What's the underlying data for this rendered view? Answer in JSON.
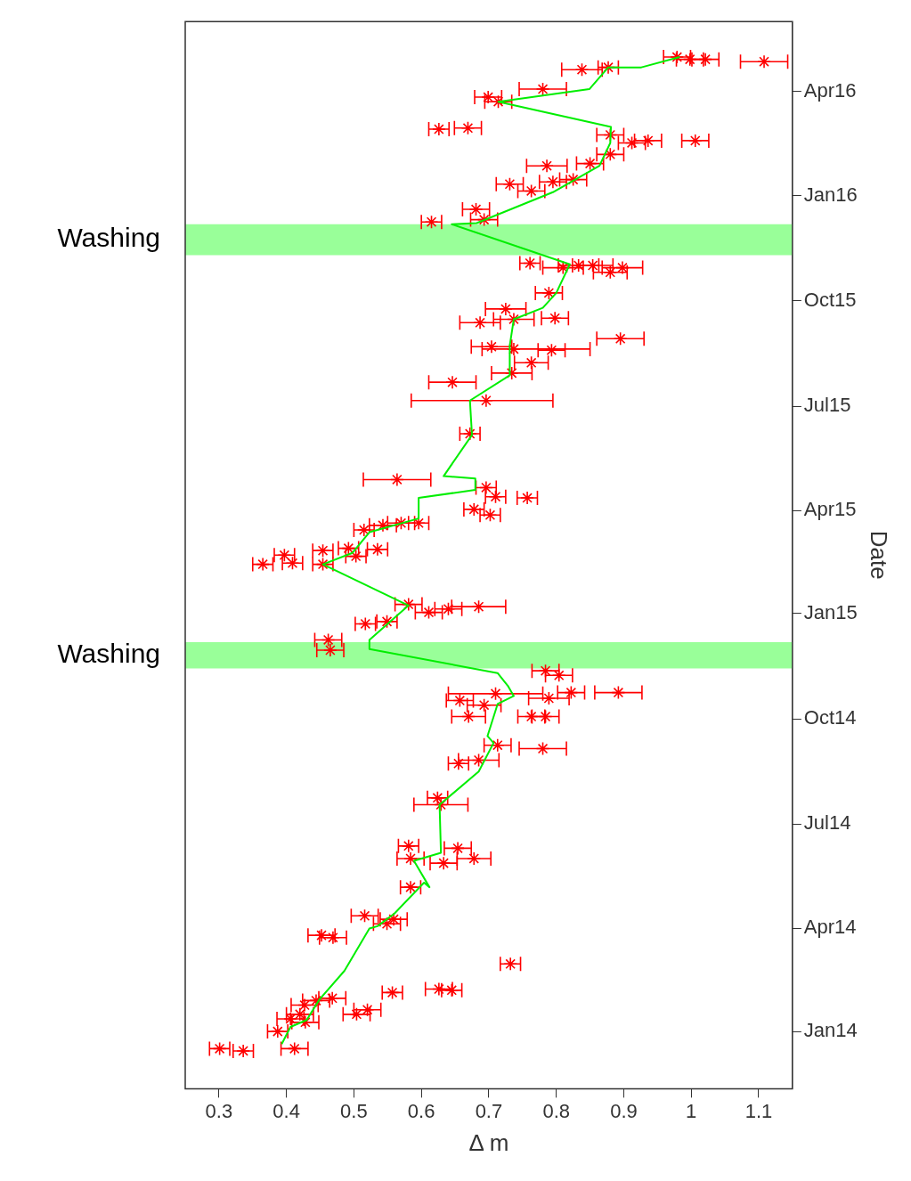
{
  "chart_data": {
    "type": "scatter",
    "orientation": "horizontal",
    "xlabel": "Δ m",
    "ylabel": "Date",
    "xlim": [
      0.25,
      1.15
    ],
    "ylim": [
      "2013-11-12",
      "2016-06-01"
    ],
    "xticks": [
      0.3,
      0.4,
      0.5,
      0.6,
      0.7,
      0.8,
      0.9,
      1,
      1.1
    ],
    "yticks": [
      {
        "value": "2014-01-01",
        "label": "Jan14"
      },
      {
        "value": "2014-04-01",
        "label": "Apr14"
      },
      {
        "value": "2014-07-01",
        "label": "Jul14"
      },
      {
        "value": "2014-10-01",
        "label": "Oct14"
      },
      {
        "value": "2015-01-01",
        "label": "Jan15"
      },
      {
        "value": "2015-04-01",
        "label": "Apr15"
      },
      {
        "value": "2015-07-01",
        "label": "Jul15"
      },
      {
        "value": "2015-10-01",
        "label": "Oct15"
      },
      {
        "value": "2016-01-01",
        "label": "Jan16"
      },
      {
        "value": "2016-04-01",
        "label": "Apr16"
      }
    ],
    "grid": false,
    "legend": false,
    "marker": "cross",
    "bands": [
      {
        "axis": "y",
        "from": "2014-11-14",
        "to": "2014-12-07",
        "label": "Washing",
        "color": "#99ff99"
      },
      {
        "axis": "y",
        "from": "2015-11-10",
        "to": "2015-12-07",
        "label": "Washing",
        "color": "#99ff99"
      }
    ],
    "series": [
      {
        "color": "#ff0000",
        "x": [
          "2013-12-17",
          "2013-12-15",
          "2013-12-17",
          "2014-01-01",
          "2014-01-12",
          "2014-01-16",
          "2014-01-24",
          "2014-01-28",
          "2014-01-30",
          "2014-01-09",
          "2014-01-16",
          "2014-01-20",
          "2014-02-04",
          "2014-02-07",
          "2014-02-06",
          "2014-03-01",
          "2014-03-26",
          "2014-03-24",
          "2014-04-12",
          "2014-04-05",
          "2014-04-09",
          "2014-05-07",
          "2014-05-28",
          "2014-06-10",
          "2014-06-01",
          "2014-06-01",
          "2014-06-12",
          "2014-07-24",
          "2014-07-18",
          "2014-08-23",
          "2014-08-26",
          "2014-09-08",
          "2014-09-05",
          "2014-10-03",
          "2014-10-13",
          "2014-10-03",
          "2014-10-03",
          "2014-10-19",
          "2014-10-24",
          "2014-10-24",
          "2014-10-17",
          "2014-10-23",
          "2014-11-12",
          "2014-11-08",
          "2014-11-30",
          "2014-12-09",
          "2014-12-23",
          "2014-12-25",
          "2015-01-09",
          "2015-01-02",
          "2015-01-05",
          "2015-01-07",
          "2015-02-13",
          "2015-02-21",
          "2015-02-14",
          "2015-02-25",
          "2015-02-13",
          "2015-02-27",
          "2015-02-20",
          "2015-02-26",
          "2015-03-15",
          "2015-03-19",
          "2015-03-21",
          "2015-03-21",
          "2015-04-02",
          "2015-03-28",
          "2015-04-12",
          "2015-04-21",
          "2015-04-13",
          "2015-04-28",
          "2015-06-07",
          "2015-07-06",
          "2015-07-22",
          "2015-07-30",
          "2015-08-08",
          "2015-08-22",
          "2015-08-20",
          "2015-08-19",
          "2015-08-29",
          "2015-09-12",
          "2015-09-15",
          "2015-09-16",
          "2015-09-24",
          "2015-10-08",
          "2015-11-03",
          "2015-10-30",
          "2015-11-01",
          "2015-11-01",
          "2015-10-26",
          "2015-10-30",
          "2015-12-09",
          "2015-12-11",
          "2015-12-20",
          "2016-01-11",
          "2016-01-05",
          "2016-01-13",
          "2016-01-15",
          "2016-01-27",
          "2016-01-29",
          "2016-02-06",
          "2016-02-16",
          "2016-02-18",
          "2016-02-18",
          "2016-02-23",
          "2016-02-28",
          "2016-02-29",
          "2016-03-27",
          "2016-03-23",
          "2016-04-03",
          "2016-04-20",
          "2016-04-22",
          "2016-05-01",
          "2016-04-29",
          "2016-04-29",
          "2016-04-27"
        ],
        "values": [
          0.301,
          0.336,
          0.412,
          0.387,
          0.406,
          0.42,
          0.427,
          0.444,
          0.468,
          0.428,
          0.504,
          0.52,
          0.557,
          0.626,
          0.645,
          0.732,
          0.452,
          0.469,
          0.516,
          0.549,
          0.559,
          0.584,
          0.633,
          0.654,
          0.678,
          0.584,
          0.581,
          0.624,
          0.629,
          0.655,
          0.685,
          0.713,
          0.78,
          0.67,
          0.693,
          0.763,
          0.784,
          0.789,
          0.822,
          0.892,
          0.657,
          0.71,
          0.784,
          0.804,
          0.465,
          0.462,
          0.517,
          0.549,
          0.581,
          0.611,
          0.64,
          0.685,
          0.365,
          0.397,
          0.409,
          0.454,
          0.454,
          0.492,
          0.503,
          0.535,
          0.515,
          0.543,
          0.57,
          0.596,
          0.678,
          0.702,
          0.757,
          0.696,
          0.71,
          0.564,
          0.672,
          0.696,
          0.646,
          0.734,
          0.763,
          0.704,
          0.737,
          0.793,
          0.895,
          0.687,
          0.737,
          0.798,
          0.725,
          0.789,
          0.761,
          0.81,
          0.833,
          0.854,
          0.88,
          0.898,
          0.615,
          0.693,
          0.681,
          0.731,
          0.763,
          0.795,
          0.825,
          0.786,
          0.85,
          0.88,
          0.912,
          0.936,
          1.006,
          0.88,
          0.626,
          0.669,
          0.699,
          0.714,
          0.78,
          0.838,
          0.877,
          0.979,
          0.998,
          1.021,
          1.108
        ],
        "errors": [
          0.015,
          0.015,
          0.02,
          0.015,
          0.02,
          0.02,
          0.02,
          0.02,
          0.02,
          0.02,
          0.02,
          0.02,
          0.015,
          0.02,
          0.015,
          0.015,
          0.02,
          0.02,
          0.02,
          0.02,
          0.02,
          0.015,
          0.02,
          0.02,
          0.025,
          0.02,
          0.015,
          0.015,
          0.04,
          0.015,
          0.03,
          0.02,
          0.035,
          0.025,
          0.025,
          0.02,
          0.02,
          0.03,
          0.02,
          0.035,
          0.02,
          0.07,
          0.02,
          0.02,
          0.02,
          0.02,
          0.015,
          0.015,
          0.02,
          0.02,
          0.02,
          0.04,
          0.015,
          0.015,
          0.015,
          0.015,
          0.015,
          0.015,
          0.015,
          0.015,
          0.015,
          0.02,
          0.02,
          0.015,
          0.015,
          0.015,
          0.015,
          0.015,
          0.015,
          0.05,
          0.015,
          [
            0.585,
            0.795
          ],
          0.035,
          0.03,
          0.025,
          0.03,
          [
            0.69,
            0.85
          ],
          0.02,
          0.035,
          0.03,
          0.03,
          0.02,
          0.03,
          0.02,
          0.015,
          0.03,
          0.03,
          0.03,
          0.025,
          0.03,
          0.015,
          0.02,
          0.02,
          0.02,
          0.02,
          0.02,
          0.02,
          0.03,
          0.02,
          0.02,
          0.02,
          0.02,
          0.02,
          0.02,
          0.015,
          0.02,
          0.02,
          0.02,
          0.035,
          0.03,
          0.015,
          0.02,
          0.02,
          0.02,
          0.035
        ]
      },
      {
        "type": "line",
        "color": "#00ee00",
        "marker": "none",
        "x": [
          "2013-12-21",
          "2014-01-05",
          "2014-01-11",
          "2014-01-29",
          "2014-02-23",
          "2014-04-01",
          "2014-04-03",
          "2014-04-14",
          "2014-05-11",
          "2014-05-07",
          "2014-05-30",
          "2014-06-06",
          "2014-07-18",
          "2014-08-16",
          "2014-09-10",
          "2014-09-16",
          "2014-10-14",
          "2014-10-21",
          "2014-10-30",
          "2014-11-10",
          "2014-12-01",
          "2014-12-09",
          "2015-01-08",
          "2015-02-13",
          "2015-02-23",
          "2015-03-13",
          "2015-03-25",
          "2015-04-12",
          "2015-04-19",
          "2015-04-29",
          "2015-05-01",
          "2015-06-06",
          "2015-07-06",
          "2015-07-28",
          "2015-08-23",
          "2015-09-15",
          "2015-09-25",
          "2015-10-08",
          "2015-11-02",
          "2015-12-07",
          "2015-12-08",
          "2016-01-04",
          "2016-01-27",
          "2016-02-16",
          "2016-03-01",
          "2016-03-23",
          "2016-04-03",
          "2016-04-22",
          "2016-04-22",
          "2016-05-01"
        ],
        "values": [
          0.393,
          0.406,
          0.43,
          0.449,
          0.486,
          0.523,
          0.535,
          0.56,
          0.604,
          0.612,
          0.589,
          0.629,
          0.627,
          0.685,
          0.707,
          0.698,
          0.713,
          0.737,
          0.728,
          0.713,
          0.523,
          0.523,
          0.581,
          0.454,
          0.498,
          0.523,
          0.596,
          0.596,
          0.68,
          0.68,
          0.633,
          0.675,
          0.672,
          0.731,
          0.731,
          0.737,
          0.78,
          0.8,
          0.82,
          0.645,
          0.682,
          0.795,
          0.864,
          0.88,
          0.881,
          0.714,
          0.849,
          0.877,
          0.926,
          0.983
        ]
      }
    ]
  }
}
